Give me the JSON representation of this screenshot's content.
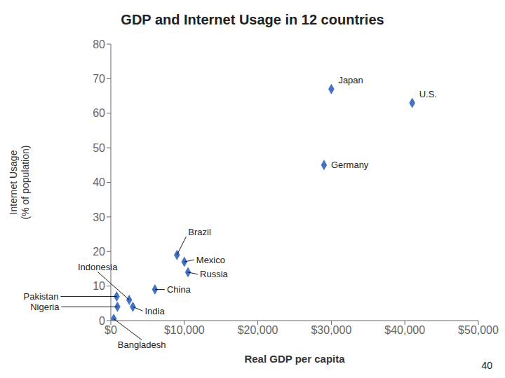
{
  "chart_data": {
    "type": "scatter",
    "title": "GDP and Internet Usage in 12 countries",
    "x_label": "Real GDP per capita",
    "y_label": "Internet Usage\n(% of population)",
    "x": [
      400,
      900,
      800,
      3000,
      6000,
      2500,
      9000,
      10000,
      10500,
      29000,
      30000,
      41000
    ],
    "values": [
      0.5,
      4,
      7,
      4,
      9,
      6,
      19,
      17,
      14,
      45,
      67,
      63
    ],
    "color": "#4472c4",
    "marker": "diamond",
    "xlim": [
      0,
      50000
    ],
    "ylim": [
      0,
      80
    ],
    "xticks": [
      {
        "value": 0,
        "label": "$0"
      },
      {
        "value": 10000,
        "label": "$10,000"
      },
      {
        "value": 20000,
        "label": "$20,000"
      },
      {
        "value": 30000,
        "label": "$30,000"
      },
      {
        "value": 40000,
        "label": "$40,000"
      },
      {
        "value": 50000,
        "label": "$50,000"
      }
    ],
    "yticks": [
      0,
      10,
      20,
      30,
      40,
      50,
      60,
      70,
      80
    ],
    "grid": false,
    "annotations": [
      {
        "text": "Bangladesh",
        "x": 400,
        "y": 0.5
      },
      {
        "text": "Nigeria",
        "x": 900,
        "y": 4
      },
      {
        "text": "Pakistan",
        "x": 800,
        "y": 7
      },
      {
        "text": "Indonesia",
        "x": 2500,
        "y": 6
      },
      {
        "text": "India",
        "x": 3000,
        "y": 4
      },
      {
        "text": "China",
        "x": 6000,
        "y": 9
      },
      {
        "text": "Brazil",
        "x": 9000,
        "y": 19
      },
      {
        "text": "Mexico",
        "x": 10000,
        "y": 17
      },
      {
        "text": "Russia",
        "x": 10500,
        "y": 14
      },
      {
        "text": "Germany",
        "x": 29000,
        "y": 45
      },
      {
        "text": "Japan",
        "x": 30000,
        "y": 67
      },
      {
        "text": "U.S.",
        "x": 41000,
        "y": 63
      }
    ],
    "page_number": "40"
  }
}
